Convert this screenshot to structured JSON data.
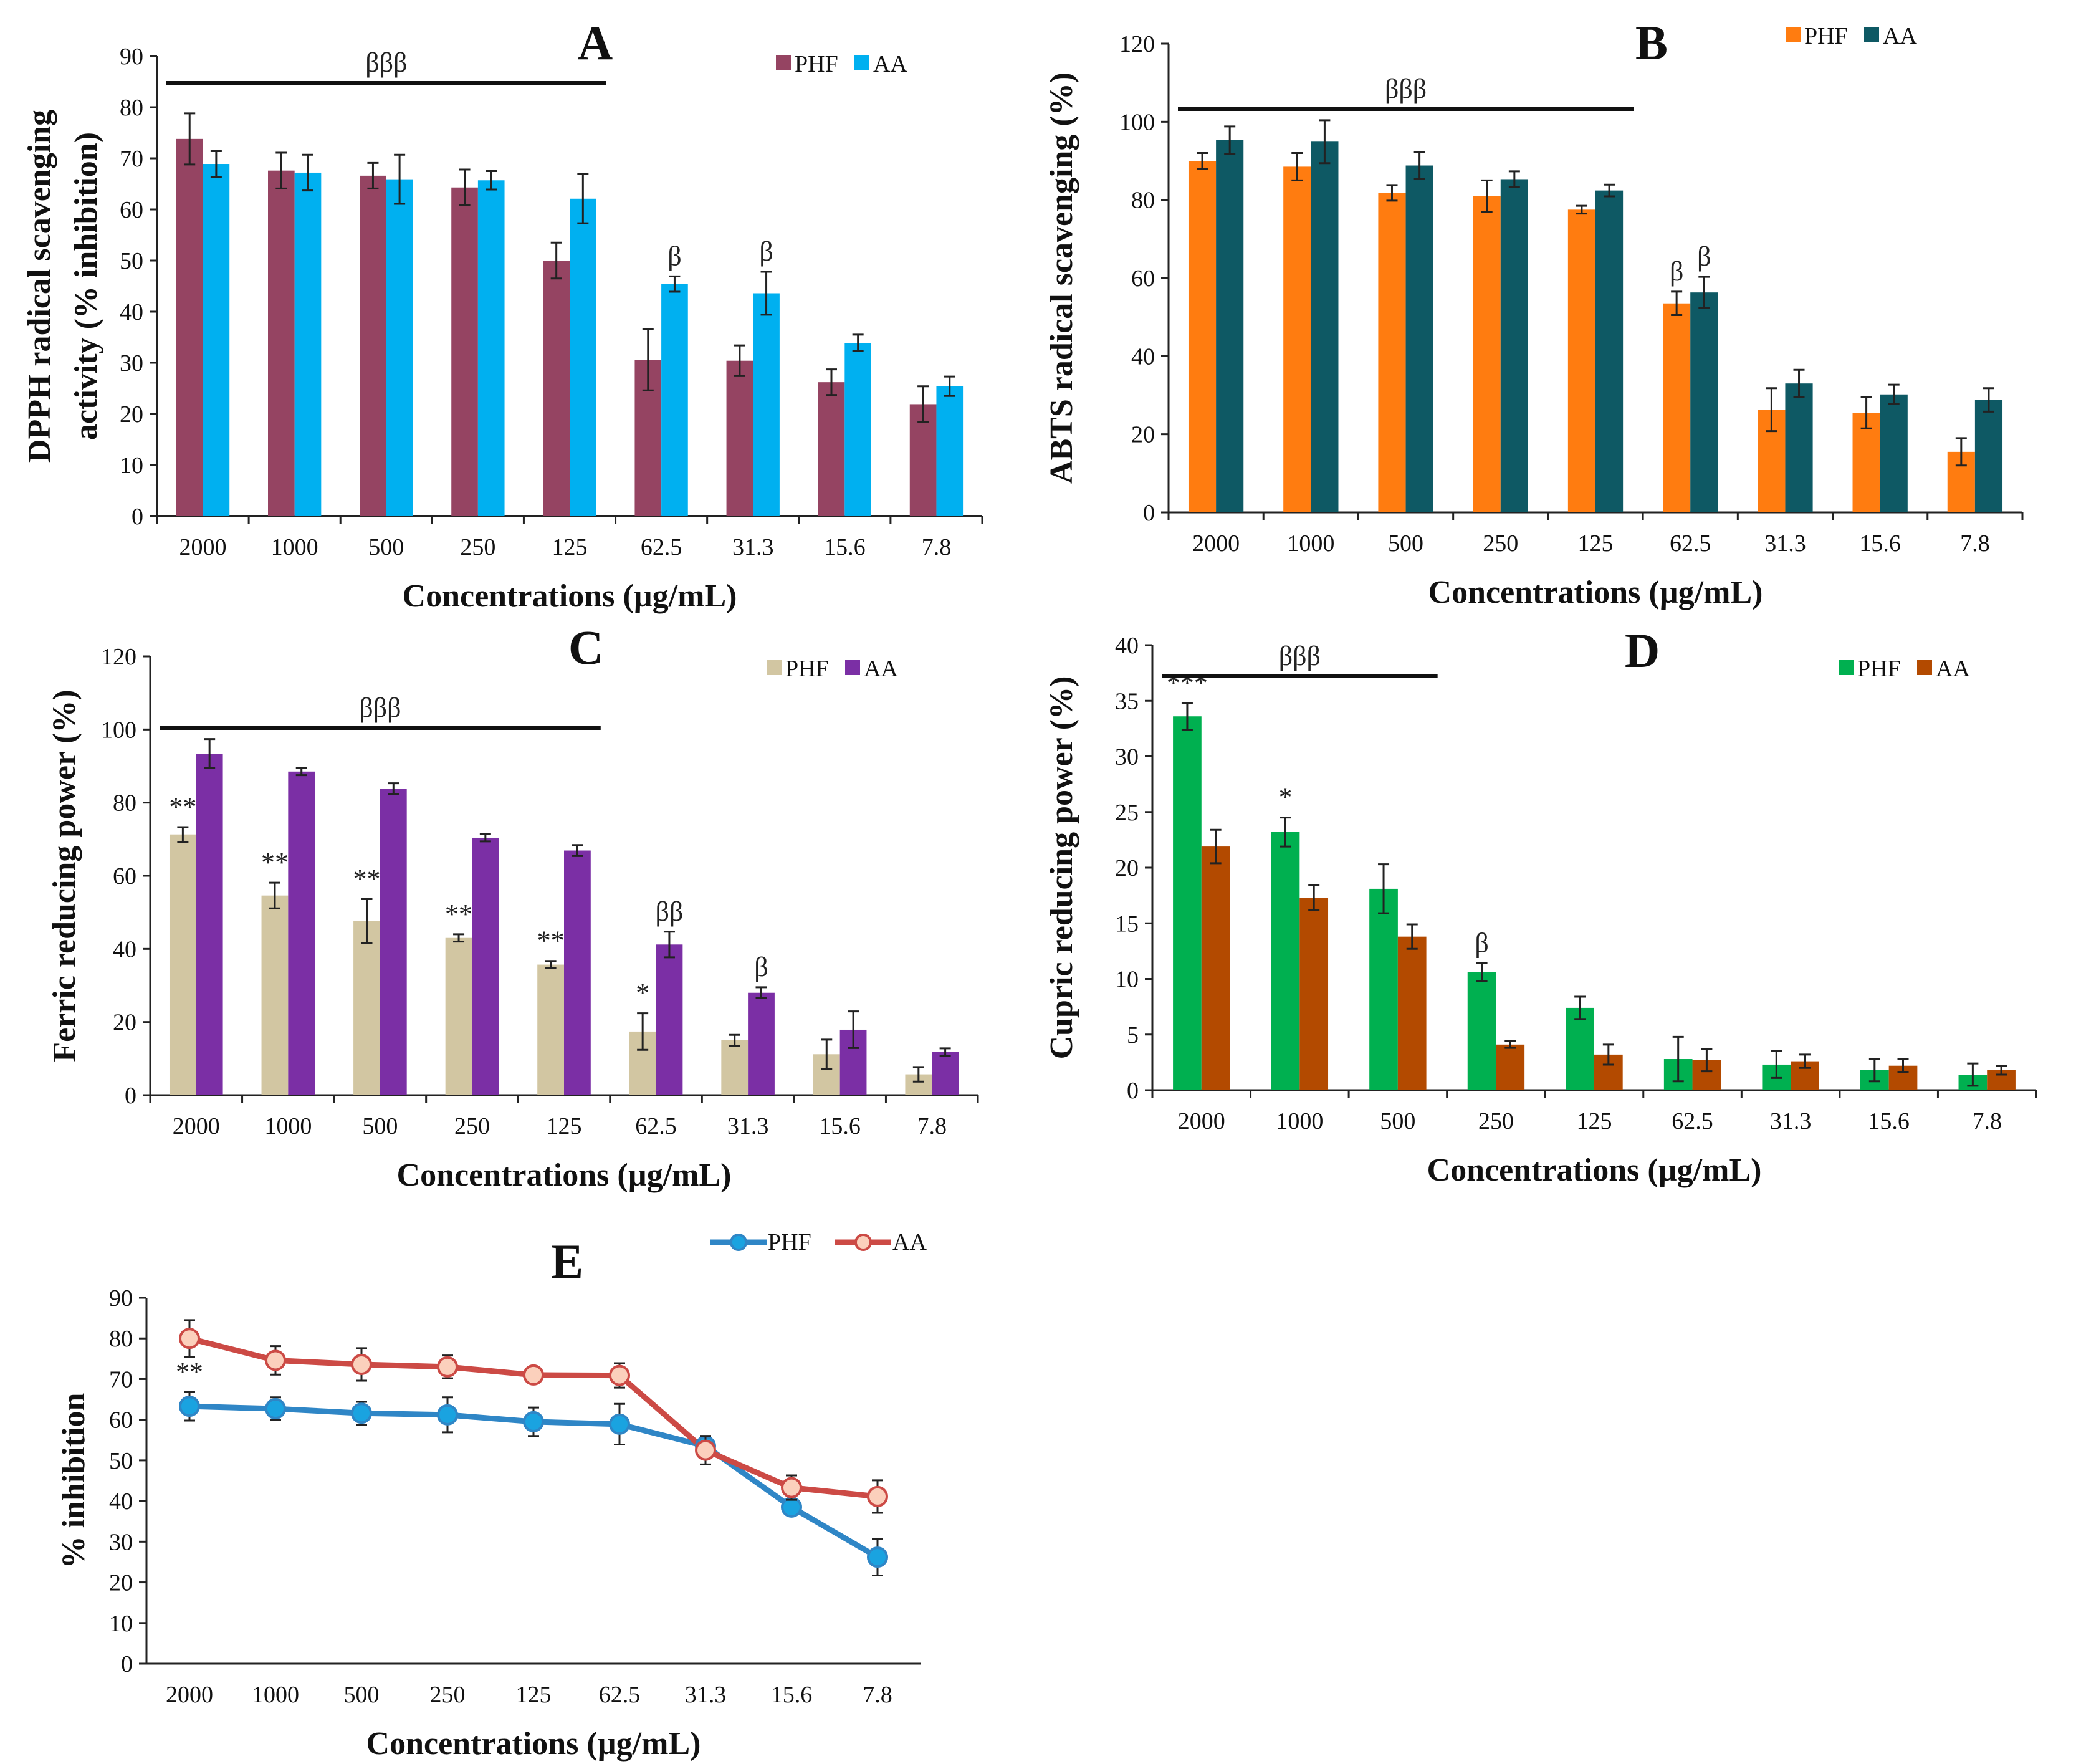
{
  "chart_data": [
    {
      "panel": "A",
      "type": "bar",
      "categories": [
        "2000",
        "1000",
        "500",
        "250",
        "125",
        "62.5",
        "31.3",
        "15.6",
        "7.8"
      ],
      "xlabel": "Concentrations (µg/mL)",
      "ylabel": [
        "DPPH radical scavenging",
        "activity (% inhibition)"
      ],
      "ylim": [
        0,
        90
      ],
      "yticks": [
        0,
        10,
        20,
        30,
        40,
        50,
        60,
        70,
        80,
        90
      ],
      "legend": "top-right",
      "series": [
        {
          "name": "PHF",
          "color": "#954462",
          "values": [
            73.8,
            67.6,
            66.6,
            64.3,
            50.0,
            30.6,
            30.4,
            26.2,
            21.9
          ],
          "errors": [
            5,
            3.5,
            2.5,
            3.5,
            3.5,
            6,
            3,
            2.5,
            3.5
          ]
        },
        {
          "name": "AA",
          "color": "#00b0f0",
          "values": [
            68.9,
            67.2,
            65.9,
            65.7,
            62.1,
            45.4,
            43.6,
            33.9,
            25.4
          ],
          "errors": [
            2.5,
            3.5,
            4.8,
            1.8,
            4.8,
            1.5,
            4.2,
            1.6,
            1.9
          ]
        }
      ],
      "bracket": {
        "label": "βββ",
        "from": "2000",
        "to": "125"
      },
      "annotations": [
        {
          "text": "β",
          "category": "62.5",
          "series": 1
        },
        {
          "text": "β",
          "category": "31.3",
          "series": 1
        }
      ]
    },
    {
      "panel": "B",
      "type": "bar",
      "categories": [
        "2000",
        "1000",
        "500",
        "250",
        "125",
        "62.5",
        "31.3",
        "15.6",
        "7.8"
      ],
      "xlabel": "Concentrations (µg/mL)",
      "ylabel": [
        "ABTS radical scavenging (%)"
      ],
      "ylim": [
        0,
        120
      ],
      "yticks": [
        0,
        20,
        40,
        60,
        80,
        100,
        120
      ],
      "legend": "top-right",
      "series": [
        {
          "name": "PHF",
          "color": "#ff7c10",
          "values": [
            90.0,
            88.5,
            81.8,
            81.0,
            77.5,
            53.5,
            26.3,
            25.5,
            15.5
          ],
          "errors": [
            2,
            3.5,
            2,
            4,
            1,
            3,
            5.5,
            4,
            3.5
          ]
        },
        {
          "name": "AA",
          "color": "#0e5964",
          "values": [
            95.3,
            94.9,
            88.8,
            85.3,
            82.4,
            56.3,
            33.0,
            30.2,
            28.8
          ],
          "errors": [
            3.5,
            5.5,
            3.5,
            2,
            1.5,
            4,
            3.5,
            2.5,
            3
          ]
        }
      ],
      "bracket": {
        "label": "βββ",
        "from": "2000",
        "to": "125"
      },
      "annotations": [
        {
          "text": "β",
          "category": "62.5",
          "series": 0
        },
        {
          "text": "β",
          "category": "62.5",
          "series": 1
        }
      ]
    },
    {
      "panel": "C",
      "type": "bar",
      "categories": [
        "2000",
        "1000",
        "500",
        "250",
        "125",
        "62.5",
        "31.3",
        "15.6",
        "7.8"
      ],
      "xlabel": "Concentrations (µg/mL)",
      "ylabel": [
        "Ferric reducing power (%)"
      ],
      "ylim": [
        0,
        120
      ],
      "yticks": [
        0,
        20,
        40,
        60,
        80,
        100,
        120
      ],
      "legend": "top-right",
      "series": [
        {
          "name": "PHF",
          "color": "#d2c6a2",
          "values": [
            71.3,
            54.6,
            47.6,
            43.0,
            35.7,
            17.4,
            15.0,
            11.2,
            5.7
          ],
          "errors": [
            2,
            3.5,
            6,
            1,
            1,
            5,
            1.5,
            4,
            2
          ]
        },
        {
          "name": "AA",
          "color": "#7b2fa5",
          "values": [
            93.4,
            88.5,
            83.8,
            70.4,
            66.9,
            41.2,
            28.0,
            17.9,
            11.8
          ],
          "errors": [
            4,
            1,
            1.5,
            1,
            1.5,
            3.5,
            1.5,
            5,
            1
          ]
        }
      ],
      "bracket": {
        "label": "βββ",
        "from": "2000",
        "to": "125"
      },
      "annotations": [
        {
          "text": "**",
          "category": "2000",
          "series": 0
        },
        {
          "text": "**",
          "category": "1000",
          "series": 0
        },
        {
          "text": "**",
          "category": "500",
          "series": 0
        },
        {
          "text": "**",
          "category": "250",
          "series": 0
        },
        {
          "text": "**",
          "category": "125",
          "series": 0
        },
        {
          "text": "*",
          "category": "62.5",
          "series": 0
        },
        {
          "text": "ββ",
          "category": "62.5",
          "series": 1
        },
        {
          "text": "β",
          "category": "31.3",
          "series": 1
        }
      ]
    },
    {
      "panel": "D",
      "type": "bar",
      "categories": [
        "2000",
        "1000",
        "500",
        "250",
        "125",
        "62.5",
        "31.3",
        "15.6",
        "7.8"
      ],
      "xlabel": "Concentrations (µg/mL)",
      "ylabel": [
        "Cupric reducing power (%)"
      ],
      "ylim": [
        0,
        40
      ],
      "yticks": [
        0,
        5,
        10,
        15,
        20,
        25,
        30,
        35,
        40
      ],
      "legend": "top-right",
      "series": [
        {
          "name": "PHF",
          "color": "#00b050",
          "values": [
            33.6,
            23.2,
            18.1,
            10.6,
            7.4,
            2.8,
            2.3,
            1.8,
            1.4
          ],
          "errors": [
            1.2,
            1.3,
            2.2,
            0.8,
            1,
            2,
            1.2,
            1,
            1
          ]
        },
        {
          "name": "AA",
          "color": "#b34a00",
          "values": [
            21.9,
            17.3,
            13.8,
            4.1,
            3.2,
            2.7,
            2.6,
            2.2,
            1.8
          ],
          "errors": [
            1.5,
            1.1,
            1.1,
            0.3,
            0.9,
            1,
            0.6,
            0.6,
            0.4
          ]
        }
      ],
      "bracket": {
        "label": "βββ",
        "from": "2000",
        "to": "500"
      },
      "annotations": [
        {
          "text": "***",
          "category": "2000",
          "series": 0
        },
        {
          "text": "*",
          "category": "1000",
          "series": 0
        },
        {
          "text": "β",
          "category": "250",
          "series": 0
        }
      ]
    },
    {
      "panel": "E",
      "type": "line",
      "categories": [
        "2000",
        "1000",
        "500",
        "250",
        "125",
        "62.5",
        "31.3",
        "15.6",
        "7.8"
      ],
      "xlabel": "Concentrations (µg/mL)",
      "ylabel": [
        "% inhibition"
      ],
      "ylim": [
        0,
        90
      ],
      "yticks": [
        0,
        10,
        20,
        30,
        40,
        50,
        60,
        70,
        80,
        90
      ],
      "legend": "top-right",
      "series": [
        {
          "name": "PHF",
          "color": "#2f86c6",
          "marker_fill": "#1aa3e0",
          "values": [
            63.3,
            62.7,
            61.6,
            61.2,
            59.5,
            58.9,
            53.5,
            38.5,
            26.2
          ],
          "errors": [
            3.5,
            2.8,
            2.8,
            4.3,
            3.5,
            5,
            2.5,
            1.5,
            4.5
          ]
        },
        {
          "name": "AA",
          "color": "#cc4a45",
          "marker_fill": "#fbd0bc",
          "values": [
            80.0,
            74.6,
            73.6,
            73.0,
            71.0,
            70.9,
            52.5,
            43.3,
            41.1
          ],
          "errors": [
            4.5,
            3.5,
            4,
            2.8,
            2,
            3,
            3.5,
            3,
            4
          ]
        }
      ],
      "annotations": [
        {
          "text": "**",
          "category": "2000",
          "series": 0
        }
      ]
    }
  ]
}
